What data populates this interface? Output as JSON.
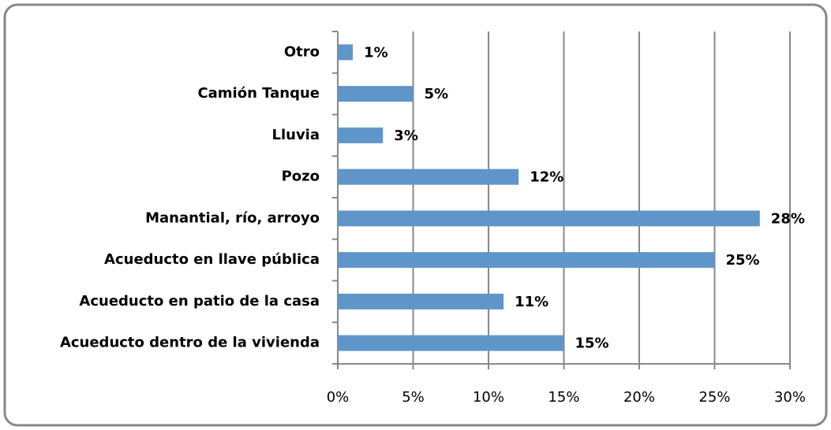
{
  "chart_data": {
    "type": "bar",
    "orientation": "horizontal",
    "categories": [
      "Otro",
      "Camión Tanque",
      "Lluvia",
      "Pozo",
      "Manantial, río, arroyo",
      "Acueducto en llave pública",
      "Acueducto en patio de la casa",
      "Acueducto dentro de la vivienda"
    ],
    "values": [
      1,
      5,
      3,
      12,
      28,
      25,
      11,
      15
    ],
    "value_labels": [
      "1%",
      "5%",
      "3%",
      "12%",
      "28%",
      "25%",
      "11%",
      "15%"
    ],
    "color": "#6095c9",
    "xlim": [
      0,
      30
    ],
    "xticks": [
      {
        "value": 0,
        "label": "0%"
      },
      {
        "value": 5,
        "label": "5%"
      },
      {
        "value": 10,
        "label": "10%"
      },
      {
        "value": 15,
        "label": "15%"
      },
      {
        "value": 20,
        "label": "20%"
      },
      {
        "value": 25,
        "label": "25%"
      },
      {
        "value": 30,
        "label": "30%"
      }
    ],
    "grid": true
  }
}
